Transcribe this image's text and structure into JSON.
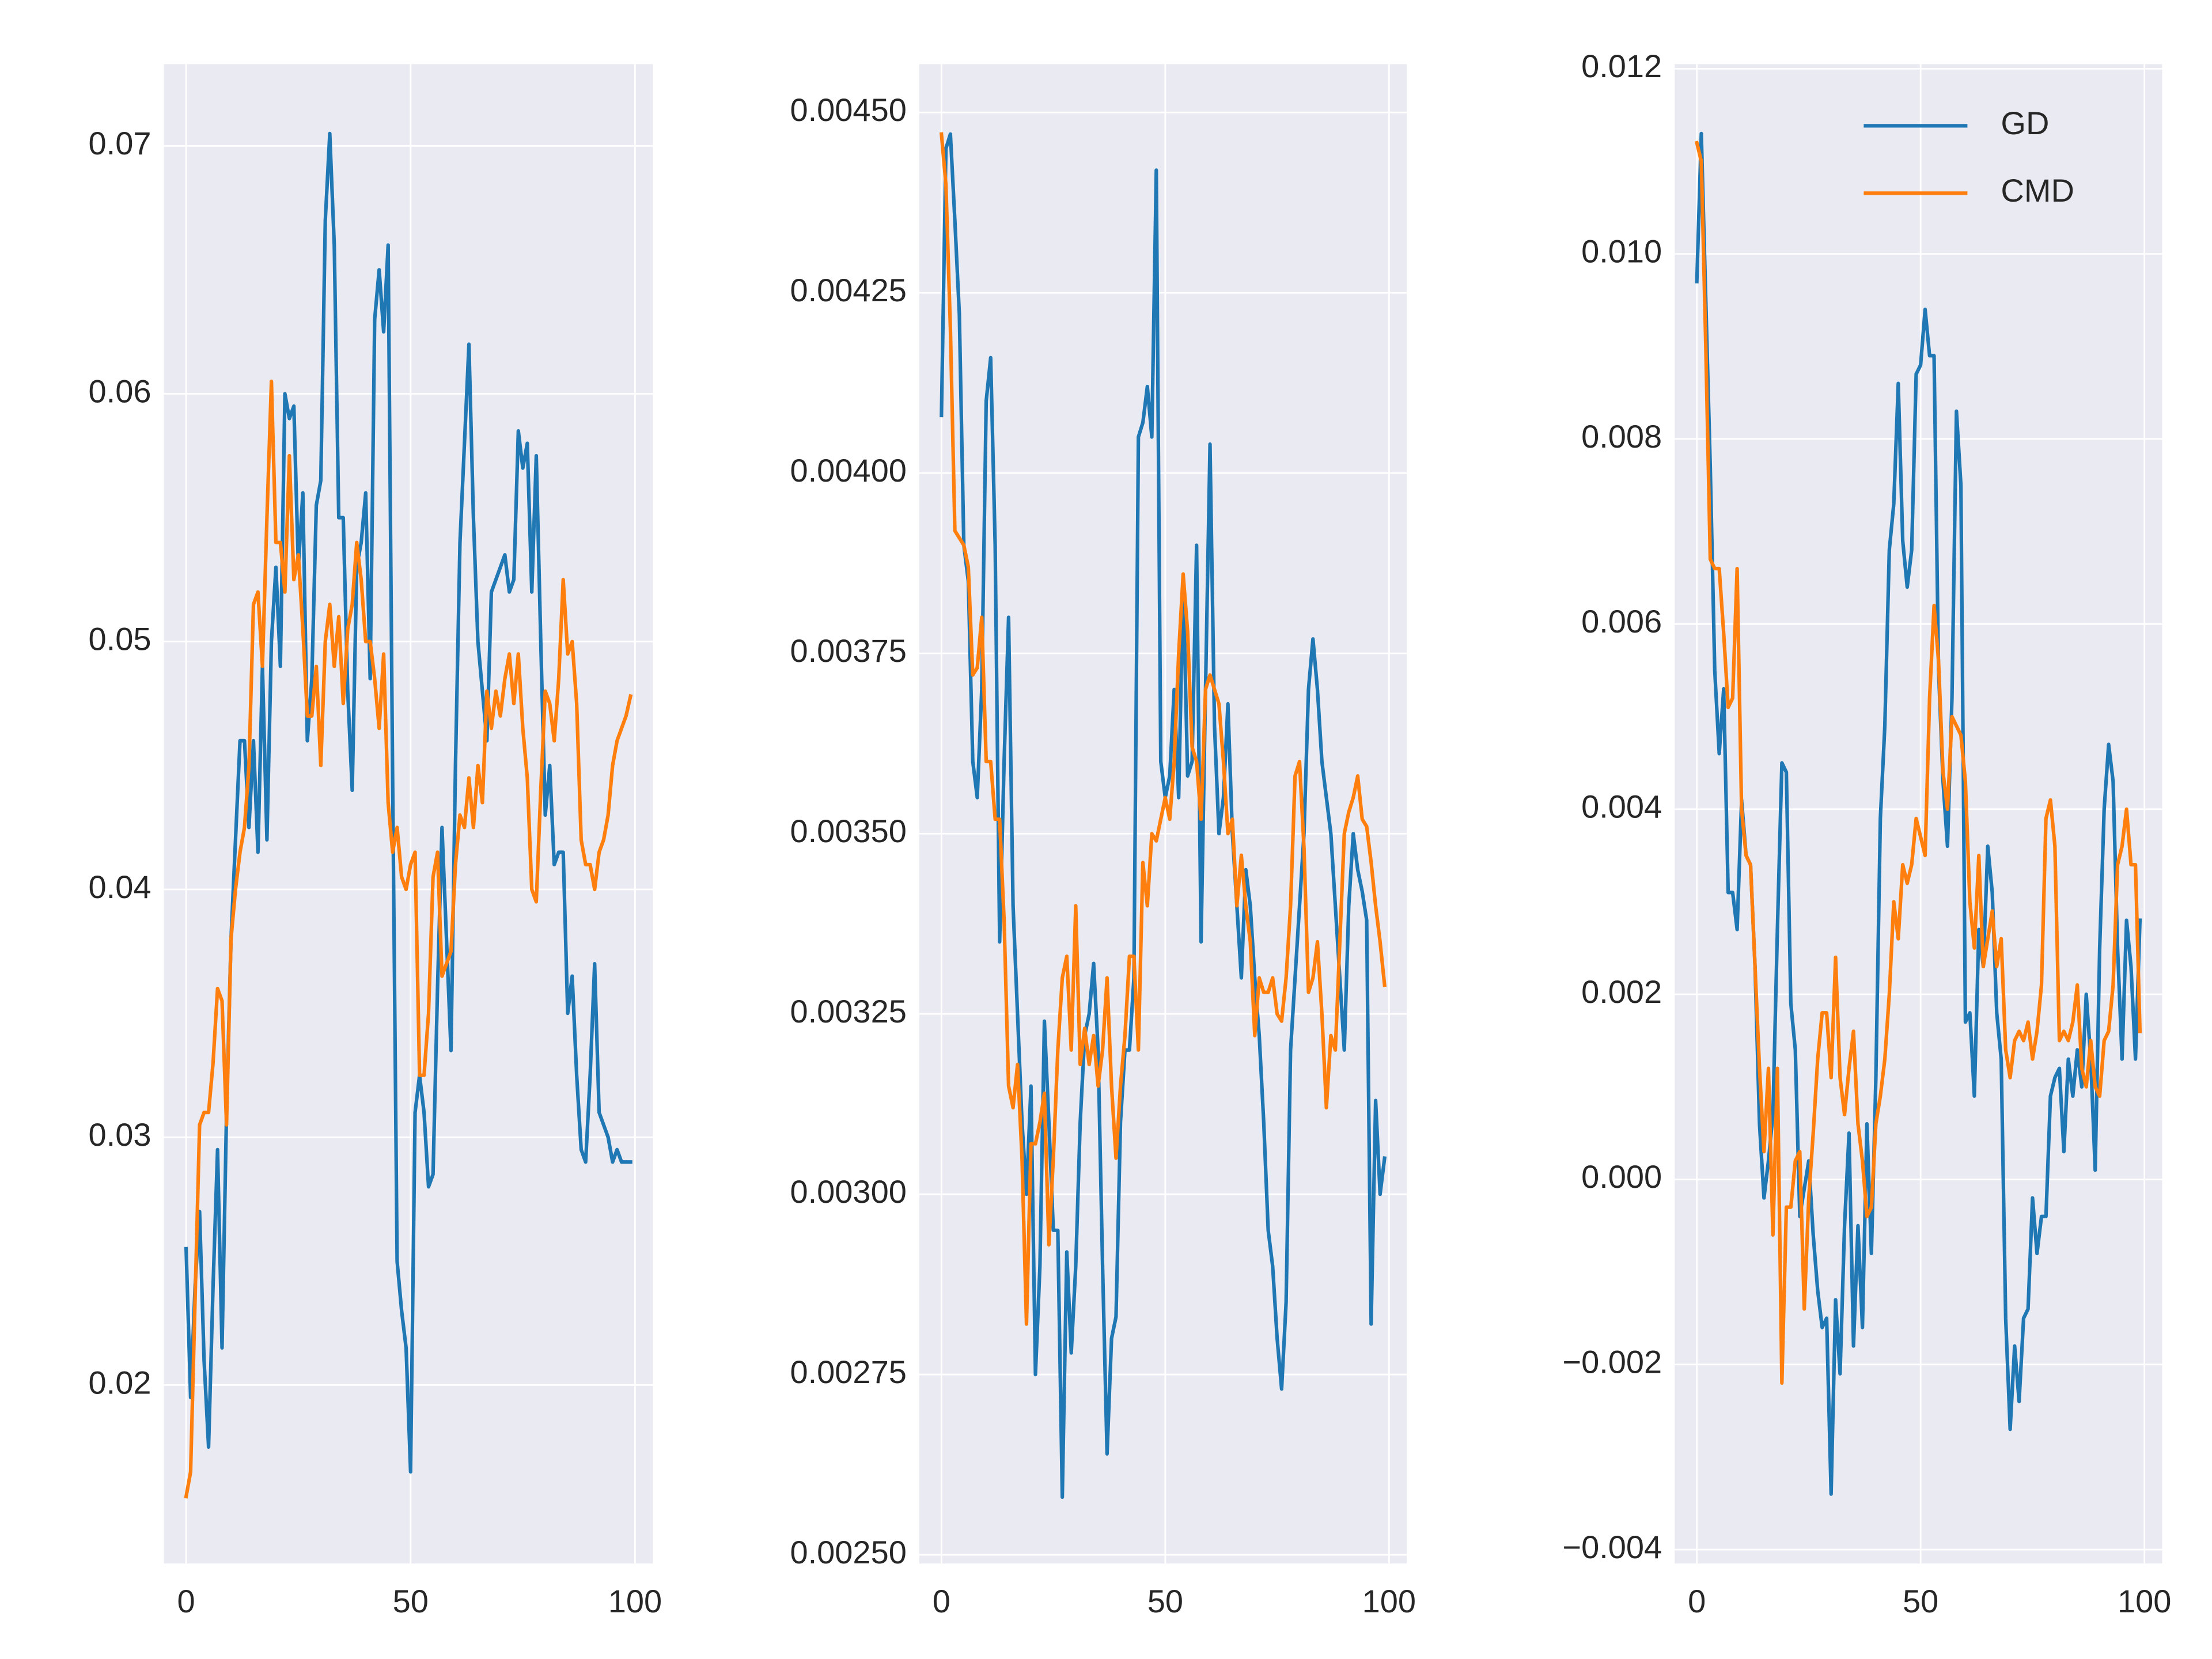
{
  "chart_data": [
    {
      "type": "line",
      "x": [
        0,
        1,
        2,
        3,
        4,
        5,
        6,
        7,
        8,
        9,
        10,
        11,
        12,
        13,
        14,
        15,
        16,
        17,
        18,
        19,
        20,
        21,
        22,
        23,
        24,
        25,
        26,
        27,
        28,
        29,
        30,
        31,
        32,
        33,
        34,
        35,
        36,
        37,
        38,
        39,
        40,
        41,
        42,
        43,
        44,
        45,
        46,
        47,
        48,
        49,
        50,
        51,
        52,
        53,
        54,
        55,
        56,
        57,
        58,
        59,
        60,
        61,
        62,
        63,
        64,
        65,
        66,
        67,
        68,
        69,
        70,
        71,
        72,
        73,
        74,
        75,
        76,
        77,
        78,
        79,
        80,
        81,
        82,
        83,
        84,
        85,
        86,
        87,
        88,
        89,
        90,
        91,
        92,
        93,
        94,
        95,
        96,
        97,
        98,
        99
      ],
      "series": [
        {
          "color": "#1f77b4",
          "values": [
            0.0255,
            0.0195,
            0.024,
            0.027,
            0.021,
            0.0175,
            0.024,
            0.0295,
            0.0215,
            0.031,
            0.038,
            0.042,
            0.046,
            0.046,
            0.0425,
            0.046,
            0.0415,
            0.049,
            0.042,
            0.05,
            0.053,
            0.049,
            0.06,
            0.059,
            0.0595,
            0.053,
            0.056,
            0.046,
            0.0485,
            0.0555,
            0.0565,
            0.067,
            0.0705,
            0.066,
            0.055,
            0.055,
            0.048,
            0.044,
            0.053,
            0.054,
            0.056,
            0.0485,
            0.063,
            0.065,
            0.0625,
            0.066,
            0.0445,
            0.025,
            0.023,
            0.0215,
            0.0165,
            0.031,
            0.0325,
            0.031,
            0.028,
            0.0285,
            0.036,
            0.0425,
            0.038,
            0.0335,
            0.045,
            0.054,
            0.058,
            0.062,
            0.055,
            0.05,
            0.048,
            0.046,
            0.052,
            0.0525,
            0.053,
            0.0535,
            0.052,
            0.0525,
            0.0585,
            0.057,
            0.058,
            0.052,
            0.0575,
            0.05,
            0.043,
            0.045,
            0.041,
            0.0415,
            0.0415,
            0.035,
            0.0365,
            0.0325,
            0.0295,
            0.029,
            0.0325,
            0.037,
            0.031,
            0.0305,
            0.03,
            0.029,
            0.0295,
            0.029,
            0.029,
            0.029
          ]
        },
        {
          "color": "#ff7f0e",
          "values": [
            0.0155,
            0.0165,
            0.0235,
            0.0305,
            0.031,
            0.031,
            0.033,
            0.036,
            0.0355,
            0.0305,
            0.038,
            0.04,
            0.0415,
            0.0425,
            0.045,
            0.0515,
            0.052,
            0.049,
            0.055,
            0.0605,
            0.054,
            0.054,
            0.052,
            0.0575,
            0.0525,
            0.0535,
            0.0505,
            0.047,
            0.047,
            0.049,
            0.045,
            0.05,
            0.0515,
            0.049,
            0.051,
            0.0475,
            0.0505,
            0.0515,
            0.054,
            0.0525,
            0.05,
            0.05,
            0.0485,
            0.0465,
            0.0495,
            0.0435,
            0.0415,
            0.0425,
            0.0405,
            0.04,
            0.041,
            0.0415,
            0.0325,
            0.0325,
            0.035,
            0.0405,
            0.0415,
            0.0365,
            0.037,
            0.0375,
            0.041,
            0.043,
            0.0425,
            0.0445,
            0.0425,
            0.045,
            0.0435,
            0.048,
            0.0465,
            0.048,
            0.047,
            0.0485,
            0.0495,
            0.0475,
            0.0495,
            0.0465,
            0.0445,
            0.04,
            0.0395,
            0.044,
            0.048,
            0.0475,
            0.046,
            0.0485,
            0.0525,
            0.0495,
            0.05,
            0.0475,
            0.042,
            0.041,
            0.041,
            0.04,
            0.0415,
            0.042,
            0.043,
            0.045,
            0.046,
            0.0465,
            0.047,
            0.0478
          ]
        }
      ],
      "xlim": [
        -4.95,
        103.95
      ],
      "xticks": [
        0,
        50,
        100
      ],
      "ylim": [
        0.0128,
        0.0733
      ],
      "yticks": [
        0.02,
        0.03,
        0.04,
        0.05,
        0.06,
        0.07
      ],
      "grid": true
    },
    {
      "type": "line",
      "x": [
        0,
        1,
        2,
        3,
        4,
        5,
        6,
        7,
        8,
        9,
        10,
        11,
        12,
        13,
        14,
        15,
        16,
        17,
        18,
        19,
        20,
        21,
        22,
        23,
        24,
        25,
        26,
        27,
        28,
        29,
        30,
        31,
        32,
        33,
        34,
        35,
        36,
        37,
        38,
        39,
        40,
        41,
        42,
        43,
        44,
        45,
        46,
        47,
        48,
        49,
        50,
        51,
        52,
        53,
        54,
        55,
        56,
        57,
        58,
        59,
        60,
        61,
        62,
        63,
        64,
        65,
        66,
        67,
        68,
        69,
        70,
        71,
        72,
        73,
        74,
        75,
        76,
        77,
        78,
        79,
        80,
        81,
        82,
        83,
        84,
        85,
        86,
        87,
        88,
        89,
        90,
        91,
        92,
        93,
        94,
        95,
        96,
        97,
        98,
        99
      ],
      "series": [
        {
          "color": "#1f77b4",
          "values": [
            0.00408,
            0.00445,
            0.00447,
            0.00435,
            0.00422,
            0.0039,
            0.00385,
            0.0036,
            0.00355,
            0.0037,
            0.0041,
            0.00416,
            0.0039,
            0.00335,
            0.0036,
            0.0038,
            0.0034,
            0.00325,
            0.0031,
            0.003,
            0.00315,
            0.00275,
            0.0029,
            0.00324,
            0.0031,
            0.00295,
            0.00295,
            0.00258,
            0.00292,
            0.00278,
            0.0029,
            0.0031,
            0.00322,
            0.00325,
            0.00332,
            0.0032,
            0.0029,
            0.00264,
            0.0028,
            0.00283,
            0.0031,
            0.0032,
            0.0032,
            0.0033,
            0.00405,
            0.00407,
            0.00412,
            0.00405,
            0.00442,
            0.0036,
            0.00355,
            0.00358,
            0.0037,
            0.00355,
            0.00385,
            0.00358,
            0.0036,
            0.0039,
            0.00335,
            0.0037,
            0.00404,
            0.00365,
            0.0035,
            0.00355,
            0.00368,
            0.0035,
            0.0034,
            0.0033,
            0.00345,
            0.0034,
            0.0033,
            0.00322,
            0.0031,
            0.00295,
            0.0029,
            0.0028,
            0.00273,
            0.00285,
            0.0032,
            0.0033,
            0.0034,
            0.0035,
            0.0037,
            0.00377,
            0.0037,
            0.0036,
            0.00355,
            0.0035,
            0.0034,
            0.0033,
            0.0032,
            0.0034,
            0.0035,
            0.00345,
            0.00342,
            0.00338,
            0.00282,
            0.00313,
            0.003,
            0.00305
          ]
        },
        {
          "color": "#ff7f0e",
          "values": [
            0.00447,
            0.0044,
            0.0042,
            0.00392,
            0.00391,
            0.0039,
            0.00387,
            0.00372,
            0.00373,
            0.0038,
            0.0036,
            0.0036,
            0.00352,
            0.00352,
            0.00338,
            0.00315,
            0.00312,
            0.00318,
            0.00305,
            0.00282,
            0.00307,
            0.00307,
            0.0031,
            0.00314,
            0.00293,
            0.00305,
            0.0032,
            0.0033,
            0.00333,
            0.0032,
            0.0034,
            0.00318,
            0.00323,
            0.00318,
            0.00322,
            0.00315,
            0.0032,
            0.0033,
            0.00315,
            0.00305,
            0.00315,
            0.00322,
            0.00333,
            0.00333,
            0.0032,
            0.00346,
            0.0034,
            0.0035,
            0.00349,
            0.00352,
            0.00355,
            0.00352,
            0.0036,
            0.00375,
            0.00386,
            0.00378,
            0.00362,
            0.0036,
            0.00352,
            0.0037,
            0.00372,
            0.0037,
            0.00368,
            0.0036,
            0.0035,
            0.00352,
            0.0034,
            0.00347,
            0.0034,
            0.00335,
            0.00322,
            0.0033,
            0.00328,
            0.00328,
            0.0033,
            0.00325,
            0.00324,
            0.0033,
            0.0034,
            0.00358,
            0.0036,
            0.00348,
            0.00328,
            0.0033,
            0.00335,
            0.00325,
            0.00312,
            0.00322,
            0.0032,
            0.00335,
            0.0035,
            0.00353,
            0.00355,
            0.00358,
            0.00352,
            0.00351,
            0.00346,
            0.0034,
            0.00335,
            0.00329
          ]
        }
      ],
      "xlim": [
        -4.95,
        103.95
      ],
      "xticks": [
        0,
        50,
        100
      ],
      "ylim": [
        0.002488,
        0.004567
      ],
      "yticks": [
        {
          "value": 0.0025,
          "label": "0.00250"
        },
        0.00275,
        {
          "value": 0.003,
          "label": "0.00300"
        },
        0.00325,
        {
          "value": 0.0035,
          "label": "0.00350"
        },
        0.00375,
        {
          "value": 0.004,
          "label": "0.00400"
        },
        0.00425,
        {
          "value": 0.0045,
          "label": "0.00450"
        }
      ],
      "grid": true
    },
    {
      "type": "line",
      "x": [
        0,
        1,
        2,
        3,
        4,
        5,
        6,
        7,
        8,
        9,
        10,
        11,
        12,
        13,
        14,
        15,
        16,
        17,
        18,
        19,
        20,
        21,
        22,
        23,
        24,
        25,
        26,
        27,
        28,
        29,
        30,
        31,
        32,
        33,
        34,
        35,
        36,
        37,
        38,
        39,
        40,
        41,
        42,
        43,
        44,
        45,
        46,
        47,
        48,
        49,
        50,
        51,
        52,
        53,
        54,
        55,
        56,
        57,
        58,
        59,
        60,
        61,
        62,
        63,
        64,
        65,
        66,
        67,
        68,
        69,
        70,
        71,
        72,
        73,
        74,
        75,
        76,
        77,
        78,
        79,
        80,
        81,
        82,
        83,
        84,
        85,
        86,
        87,
        88,
        89,
        90,
        91,
        92,
        93,
        94,
        95,
        96,
        97,
        98,
        99
      ],
      "series": [
        {
          "name": "GD",
          "color": "#1f77b4",
          "values": [
            0.0097,
            0.0113,
            0.0095,
            0.0077,
            0.0055,
            0.0046,
            0.0053,
            0.0031,
            0.0031,
            0.0027,
            0.0041,
            0.0035,
            0.0034,
            0.0023,
            0.0006,
            -0.0002,
            0.0002,
            0.0007,
            0.0027,
            0.0045,
            0.0044,
            0.0019,
            0.0014,
            -0.0004,
            -0.0001,
            0.0002,
            -0.0006,
            -0.0012,
            -0.0016,
            -0.0015,
            -0.0034,
            -0.0013,
            -0.0021,
            -0.0005,
            0.0005,
            -0.0018,
            -0.0005,
            -0.0016,
            0.0006,
            -0.0008,
            0.0011,
            0.0039,
            0.0049,
            0.0068,
            0.0073,
            0.0086,
            0.0069,
            0.0064,
            0.0068,
            0.0087,
            0.0088,
            0.0094,
            0.0089,
            0.0089,
            0.0055,
            0.0043,
            0.0036,
            0.0052,
            0.0083,
            0.0075,
            0.0017,
            0.0018,
            0.0009,
            0.0027,
            0.0023,
            0.0036,
            0.0031,
            0.0018,
            0.0013,
            -0.0015,
            -0.0027,
            -0.0018,
            -0.0024,
            -0.0015,
            -0.0014,
            -0.0002,
            -0.0008,
            -0.0004,
            -0.0004,
            0.0009,
            0.0011,
            0.0012,
            0.0003,
            0.0013,
            0.0009,
            0.0014,
            0.001,
            0.002,
            0.0013,
            0.0001,
            0.0025,
            0.004,
            0.0047,
            0.0043,
            0.0025,
            0.0013,
            0.0028,
            0.0023,
            0.0013,
            0.0028
          ]
        },
        {
          "name": "CMD",
          "color": "#ff7f0e",
          "values": [
            0.0112,
            0.011,
            0.009,
            0.0067,
            0.0066,
            0.0066,
            0.0059,
            0.0051,
            0.0052,
            0.0066,
            0.004,
            0.0035,
            0.0034,
            0.0023,
            0.0012,
            0.0003,
            0.0012,
            -0.0006,
            0.0012,
            -0.0022,
            -0.0003,
            -0.0003,
            0.0002,
            0.0003,
            -0.0014,
            -0.0002,
            0.0005,
            0.0013,
            0.0018,
            0.0018,
            0.0011,
            0.0024,
            0.0011,
            0.0007,
            0.0012,
            0.0016,
            0.0006,
            0.0002,
            -0.0004,
            -0.0003,
            0.0006,
            0.0009,
            0.0013,
            0.002,
            0.003,
            0.0026,
            0.0034,
            0.0032,
            0.0034,
            0.0039,
            0.0037,
            0.0035,
            0.0052,
            0.0062,
            0.0056,
            0.0044,
            0.004,
            0.005,
            0.0049,
            0.0048,
            0.0043,
            0.003,
            0.0025,
            0.0035,
            0.0023,
            0.0026,
            0.0029,
            0.0023,
            0.0026,
            0.0014,
            0.0011,
            0.0015,
            0.0016,
            0.0015,
            0.0017,
            0.0013,
            0.0016,
            0.0021,
            0.0039,
            0.0041,
            0.0036,
            0.0015,
            0.0016,
            0.0015,
            0.0017,
            0.0021,
            0.0012,
            0.001,
            0.0015,
            0.001,
            0.0009,
            0.0015,
            0.0016,
            0.0021,
            0.0034,
            0.0036,
            0.004,
            0.0034,
            0.0034,
            0.0016
          ]
        }
      ],
      "xlim": [
        -4.95,
        103.95
      ],
      "xticks": [
        0,
        50,
        100
      ],
      "ylim": [
        -0.00415,
        0.01205
      ],
      "yticks": [
        {
          "value": -0.004,
          "label": "−0.004"
        },
        {
          "value": -0.002,
          "label": "−0.002"
        },
        {
          "value": 0,
          "label": "0.000"
        },
        0.002,
        0.004,
        0.006,
        0.008,
        {
          "value": 0.01,
          "label": "0.010"
        },
        0.012
      ],
      "grid": true,
      "legend": "upper right"
    }
  ]
}
